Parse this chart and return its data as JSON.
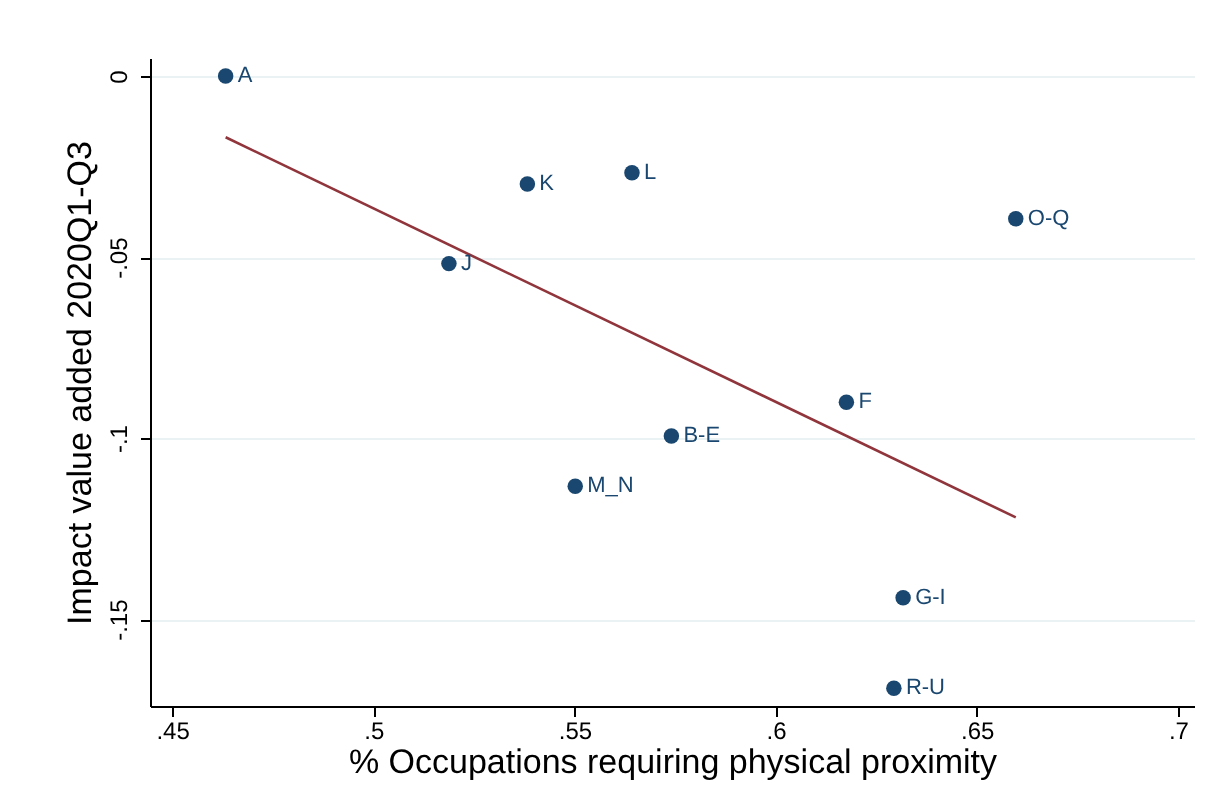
{
  "chart_data": {
    "type": "scatter",
    "xlabel": "% Occupations requiring physical proximity",
    "ylabel": "Impact value added 2020Q1-Q3",
    "xlim": [
      0.4445,
      0.704
    ],
    "ylim": [
      -0.174,
      0.005
    ],
    "xticks": [
      {
        "value": 0.45,
        "label": ".45"
      },
      {
        "value": 0.5,
        "label": ".5"
      },
      {
        "value": 0.55,
        "label": ".55"
      },
      {
        "value": 0.6,
        "label": ".6"
      },
      {
        "value": 0.65,
        "label": ".65"
      },
      {
        "value": 0.7,
        "label": ".7"
      }
    ],
    "yticks": [
      0,
      {
        "value": -0.05,
        "label": "-.05"
      },
      {
        "value": -0.1,
        "label": "-.1"
      },
      {
        "value": -0.15,
        "label": "-.15"
      }
    ],
    "grid": "y",
    "series": [
      {
        "marker": "circle",
        "color": "#1a476f",
        "x": [
          0.4633,
          0.5383,
          0.5643,
          0.6597,
          0.5188,
          0.6176,
          0.5741,
          0.5502,
          0.6317,
          0.6294
        ],
        "values": [
          0,
          -0.0298,
          -0.0267,
          -0.0394,
          -0.0518,
          -0.0901,
          -0.0994,
          -0.1133,
          -0.1441,
          -0.1691
        ]
      },
      {
        "type": "line",
        "marker": "none",
        "color": "#90353b",
        "x": [
          0.4633,
          0.6597
        ],
        "values": [
          -0.0169,
          -0.1219
        ]
      }
    ],
    "annotations": [
      {
        "text": "A",
        "x": 0.4633,
        "y": 0
      },
      {
        "text": "K",
        "x": 0.5383,
        "y": -0.0298
      },
      {
        "text": "L",
        "x": 0.5643,
        "y": -0.0267
      },
      {
        "text": "O-Q",
        "x": 0.6597,
        "y": -0.0394
      },
      {
        "text": "J",
        "x": 0.5188,
        "y": -0.0518
      },
      {
        "text": "F",
        "x": 0.6176,
        "y": -0.0901
      },
      {
        "text": "B-E",
        "x": 0.5741,
        "y": -0.0994
      },
      {
        "text": "M_N",
        "x": 0.5502,
        "y": -0.1133
      },
      {
        "text": "G-I",
        "x": 0.6317,
        "y": -0.1441
      },
      {
        "text": "R-U",
        "x": 0.6294,
        "y": -0.1691
      }
    ]
  }
}
